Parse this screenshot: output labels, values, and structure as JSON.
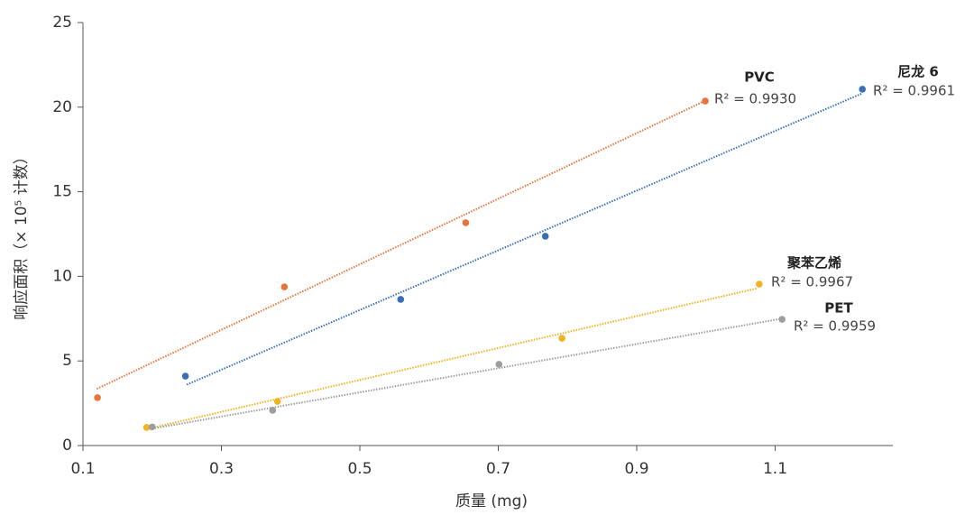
{
  "chart_data": {
    "type": "scatter",
    "x_label": "质量 (mg)",
    "y_label": "响应面积（× 10⁵ 计数）",
    "xlim": [
      0.1,
      1.27
    ],
    "ylim": [
      0,
      25
    ],
    "xticks": [
      0.1,
      0.3,
      0.5,
      0.7,
      0.9,
      1.1
    ],
    "yticks": [
      0,
      5,
      10,
      15,
      20,
      25
    ],
    "series": [
      {
        "name": "PVC",
        "r2": "R² = 0.9930",
        "color": "#e8743b",
        "x": [
          0.121,
          0.391,
          0.653,
          0.999
        ],
        "values": [
          2.83,
          9.38,
          13.17,
          20.36
        ],
        "trend": {
          "x": [
            0.12,
            1.0
          ],
          "y": [
            3.35,
            20.4
          ]
        }
      },
      {
        "name": "尼龙 6",
        "r2": "R² = 0.9961",
        "color": "#3a6fb5",
        "x": [
          0.248,
          0.559,
          0.768,
          1.226
        ],
        "values": [
          4.1,
          8.64,
          12.37,
          21.06
        ],
        "trend": {
          "x": [
            0.25,
            1.225
          ],
          "y": [
            3.6,
            20.8
          ]
        }
      },
      {
        "name": "聚苯乙烯",
        "r2": "R² = 0.9967",
        "color": "#f0b323",
        "x": [
          0.192,
          0.381,
          0.792,
          1.077
        ],
        "values": [
          1.07,
          2.61,
          6.34,
          9.54
        ],
        "trend": {
          "x": [
            0.195,
            1.075
          ],
          "y": [
            1.0,
            9.3
          ]
        }
      },
      {
        "name": "PET",
        "r2": "R² = 0.9959",
        "color": "#9e9e9e",
        "x": [
          0.2,
          0.374,
          0.701,
          1.11
        ],
        "values": [
          1.1,
          2.08,
          4.8,
          7.46
        ],
        "trend": {
          "x": [
            0.2,
            1.11
          ],
          "y": [
            1.0,
            7.5
          ]
        }
      }
    ]
  }
}
